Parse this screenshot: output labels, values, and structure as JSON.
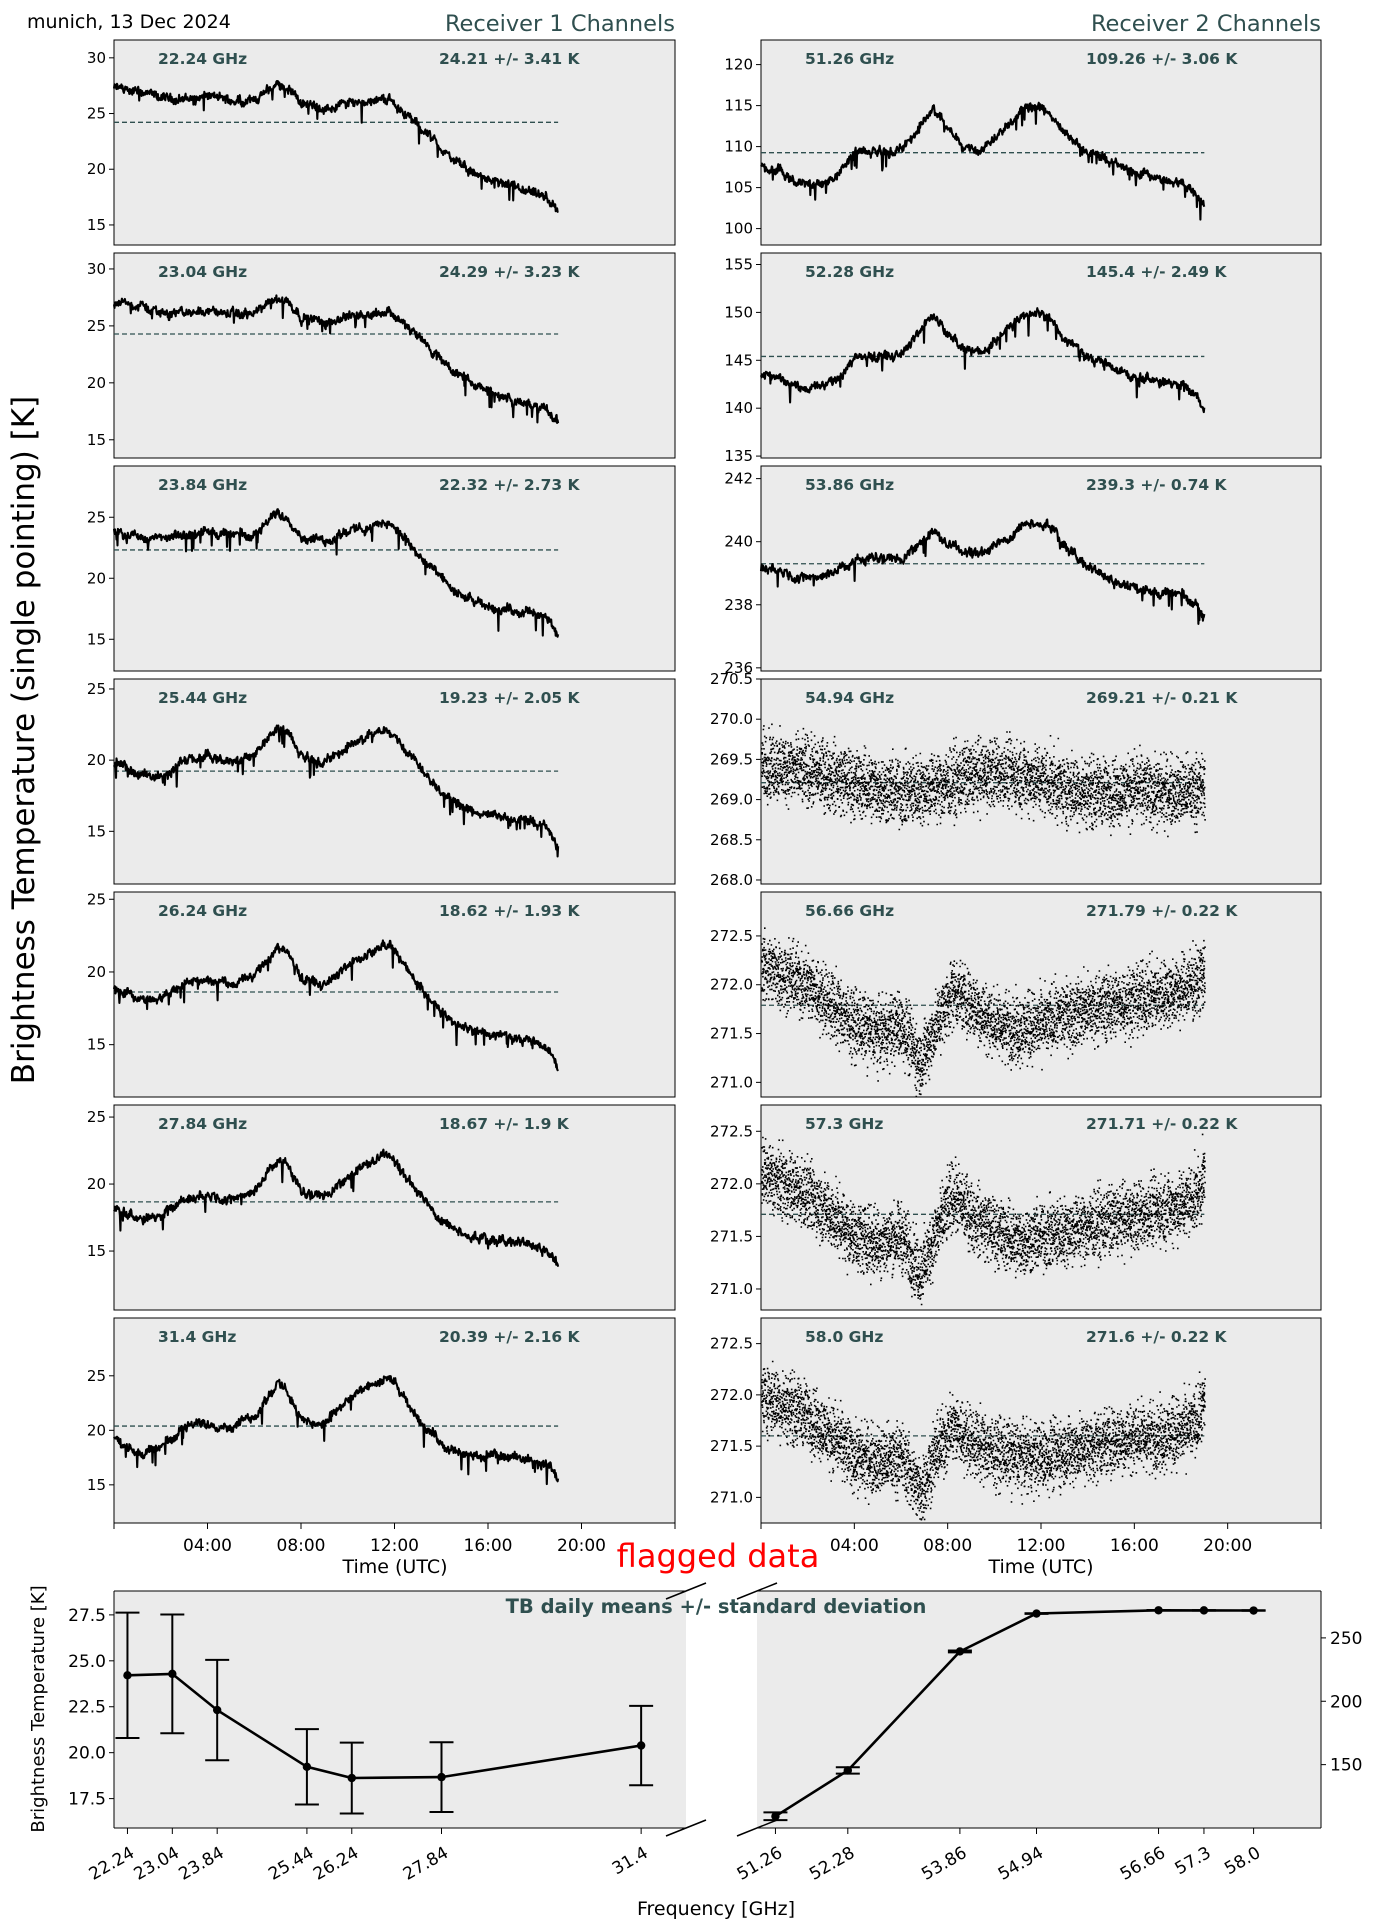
{
  "header": {
    "location_date": "munich, 13 Dec 2024",
    "rx1_title": "Receiver 1 Channels",
    "rx2_title": "Receiver 2 Channels",
    "ylabel": "Brightness Temperature (single pointing) [K]",
    "flag_text": "flagged data"
  },
  "colors": {
    "panel_bg": "#ebebeb",
    "line": "#000000",
    "mean_line": "#2f4f4f",
    "label": "#2f4f4f",
    "flag": "#ff0000"
  },
  "time_axis": {
    "xlabel": "Time (UTC)",
    "range_h": [
      0,
      24
    ],
    "ticks": [
      {
        "h": 4,
        "label": "04:00"
      },
      {
        "h": 8,
        "label": "08:00"
      },
      {
        "h": 12,
        "label": "12:00"
      },
      {
        "h": 16,
        "label": "16:00"
      },
      {
        "h": 20,
        "label": "20:00"
      }
    ],
    "data_end_h": 19
  },
  "chart_data": [
    {
      "type": "line",
      "receiver": 1,
      "channel_label": "22.24 GHz",
      "stat_label": "24.21 +/- 3.41 K",
      "mean": 24.21,
      "ylim": [
        13.2,
        31.6
      ],
      "yticks": [
        15,
        20,
        25,
        30
      ],
      "x": [
        0,
        1,
        2,
        3,
        4,
        5,
        6,
        7,
        7.5,
        8,
        9,
        10,
        11,
        11.8,
        12.5,
        13.5,
        14.5,
        15.5,
        16.5,
        17.5,
        18.5,
        19
      ],
      "y": [
        27.3,
        27.0,
        26.4,
        26.3,
        26.6,
        26.2,
        26.2,
        27.6,
        27.3,
        26.0,
        25.3,
        26.0,
        26.2,
        26.3,
        24.9,
        23.0,
        20.8,
        19.5,
        18.7,
        18.0,
        17.4,
        16.2
      ]
    },
    {
      "type": "line",
      "receiver": 1,
      "channel_label": "23.04 GHz",
      "stat_label": "24.29 +/- 3.23 K",
      "mean": 24.29,
      "ylim": [
        13.4,
        31.4
      ],
      "yticks": [
        15,
        20,
        25,
        30
      ],
      "x": [
        0,
        1,
        2,
        3,
        4,
        5,
        6,
        7,
        7.5,
        8,
        9,
        10,
        11,
        11.8,
        12.5,
        13.5,
        14.5,
        15.5,
        16.5,
        17.5,
        18.5,
        19
      ],
      "y": [
        27.1,
        26.8,
        26.2,
        26.1,
        26.4,
        26.0,
        26.1,
        27.4,
        27.1,
        25.8,
        25.3,
        25.9,
        26.1,
        26.3,
        25.0,
        23.0,
        21.0,
        19.7,
        18.9,
        18.2,
        17.6,
        16.5
      ]
    },
    {
      "type": "line",
      "receiver": 1,
      "channel_label": "23.84 GHz",
      "stat_label": "22.32 +/- 2.73 K",
      "mean": 22.32,
      "ylim": [
        12.4,
        29.2
      ],
      "yticks": [
        15,
        20,
        25
      ],
      "x": [
        0,
        1,
        2,
        3,
        4,
        5,
        6,
        7,
        7.5,
        8,
        9,
        10,
        11,
        11.8,
        12.5,
        13.5,
        14.5,
        15.5,
        16.5,
        17.5,
        18.5,
        19
      ],
      "y": [
        24.0,
        23.4,
        23.2,
        23.5,
        23.9,
        23.5,
        23.6,
        25.4,
        24.9,
        23.4,
        23.0,
        23.9,
        24.2,
        24.6,
        23.0,
        21.0,
        19.0,
        17.9,
        17.5,
        17.3,
        16.8,
        15.4
      ]
    },
    {
      "type": "line",
      "receiver": 1,
      "channel_label": "25.44 GHz",
      "stat_label": "19.23 +/- 2.05 K",
      "mean": 19.23,
      "ylim": [
        11.3,
        25.7
      ],
      "yticks": [
        15,
        20,
        25
      ],
      "x": [
        0,
        1,
        2,
        3,
        4,
        5,
        6,
        7,
        7.5,
        8,
        9,
        10,
        11,
        11.8,
        12.5,
        13.5,
        14.5,
        15.5,
        16.5,
        17.5,
        18.5,
        19
      ],
      "y": [
        19.8,
        19.0,
        18.9,
        19.9,
        20.2,
        19.8,
        20.4,
        22.3,
        21.8,
        20.3,
        19.8,
        21.0,
        21.7,
        22.2,
        20.8,
        18.8,
        17.0,
        16.3,
        16.0,
        15.8,
        15.3,
        13.8
      ]
    },
    {
      "type": "line",
      "receiver": 1,
      "channel_label": "26.24 GHz",
      "stat_label": "18.62 +/- 1.93 K",
      "mean": 18.62,
      "ylim": [
        11.4,
        25.5
      ],
      "yticks": [
        15,
        20,
        25
      ],
      "x": [
        0,
        1,
        2,
        3,
        4,
        5,
        6,
        7,
        7.5,
        8,
        9,
        10,
        11,
        11.8,
        12.5,
        13.5,
        14.5,
        15.5,
        16.5,
        17.5,
        18.5,
        19
      ],
      "y": [
        18.9,
        18.1,
        18.2,
        19.3,
        19.5,
        19.2,
        19.7,
        21.8,
        21.2,
        19.6,
        19.1,
        20.5,
        21.3,
        21.9,
        20.2,
        18.2,
        16.5,
        15.9,
        15.6,
        15.4,
        14.9,
        13.5
      ]
    },
    {
      "type": "line",
      "receiver": 1,
      "channel_label": "27.84 GHz",
      "stat_label": "18.67 +/- 1.9 K",
      "mean": 18.67,
      "ylim": [
        10.6,
        25.9
      ],
      "yticks": [
        15,
        20,
        25
      ],
      "x": [
        0,
        1,
        2,
        3,
        4,
        5,
        6,
        7,
        7.5,
        8,
        9,
        10,
        11,
        11.8,
        12.5,
        13.5,
        14.5,
        15.5,
        16.5,
        17.5,
        18.5,
        19
      ],
      "y": [
        18.3,
        17.3,
        17.5,
        18.9,
        19.2,
        18.9,
        19.5,
        21.9,
        21.3,
        19.4,
        19.0,
        20.6,
        21.6,
        22.3,
        20.4,
        18.3,
        16.6,
        16.0,
        15.8,
        15.6,
        15.1,
        14.0
      ]
    },
    {
      "type": "line",
      "receiver": 1,
      "channel_label": "31.4 GHz",
      "stat_label": "20.39 +/- 2.16 K",
      "mean": 20.39,
      "ylim": [
        11.5,
        30.3
      ],
      "yticks": [
        15,
        20,
        25
      ],
      "x": [
        0,
        1,
        2,
        3,
        4,
        5,
        6,
        7,
        7.5,
        8,
        9,
        10,
        11,
        11.8,
        12.5,
        13.5,
        14.5,
        15.5,
        16.5,
        17.5,
        18.5,
        19
      ],
      "y": [
        19.1,
        17.9,
        18.3,
        20.4,
        20.7,
        20.3,
        21.3,
        24.3,
        23.4,
        20.9,
        20.5,
        22.9,
        24.0,
        24.9,
        22.5,
        19.9,
        18.0,
        17.6,
        17.6,
        17.5,
        17.0,
        15.5
      ]
    },
    {
      "type": "line",
      "receiver": 2,
      "channel_label": "51.26 GHz",
      "stat_label": "109.26 +/- 3.06 K",
      "mean": 109.26,
      "ylim": [
        98.0,
        123.0
      ],
      "yticks": [
        100,
        105,
        110,
        115,
        120
      ],
      "x": [
        0,
        0.8,
        1.5,
        2.5,
        3.2,
        4,
        5,
        6,
        6.8,
        7.4,
        8,
        8.7,
        9.5,
        10.5,
        11.2,
        11.9,
        12.4,
        13,
        14,
        15,
        16,
        17,
        18,
        18.6,
        19
      ],
      "y": [
        107.3,
        106.9,
        105.5,
        105.4,
        106.2,
        109.3,
        109.4,
        109.5,
        112.5,
        114.6,
        112.0,
        110.2,
        109.7,
        112.7,
        114.4,
        114.9,
        114.0,
        111.5,
        109.4,
        108.1,
        106.8,
        106.1,
        105.6,
        104.6,
        102.8
      ]
    },
    {
      "type": "line",
      "receiver": 2,
      "channel_label": "52.28 GHz",
      "stat_label": "145.4 +/- 2.49 K",
      "mean": 145.4,
      "ylim": [
        134.8,
        156.2
      ],
      "yticks": [
        135,
        140,
        145,
        150,
        155
      ],
      "x": [
        0,
        0.8,
        1.5,
        2.5,
        3.2,
        4,
        5,
        6,
        6.8,
        7.4,
        8,
        8.7,
        9.5,
        10.5,
        11.2,
        11.9,
        12.4,
        13,
        14,
        15,
        16,
        17,
        18,
        18.6,
        19
      ],
      "y": [
        143.6,
        143.3,
        142.2,
        142.2,
        142.9,
        145.3,
        145.4,
        145.6,
        148.1,
        149.8,
        147.6,
        146.1,
        145.7,
        148.3,
        149.6,
        150.0,
        149.3,
        147.2,
        145.4,
        144.4,
        143.3,
        142.7,
        142.3,
        141.5,
        139.9
      ]
    },
    {
      "type": "line",
      "receiver": 2,
      "channel_label": "53.86 GHz",
      "stat_label": "239.3 +/- 0.74 K",
      "mean": 239.3,
      "ylim": [
        235.9,
        242.4
      ],
      "yticks": [
        236,
        238,
        240,
        242
      ],
      "x": [
        0,
        0.8,
        1.5,
        2.5,
        3.2,
        4,
        5,
        6,
        6.8,
        7.4,
        8,
        8.7,
        9.5,
        10.5,
        11.2,
        11.9,
        12.4,
        13,
        14,
        15,
        16,
        17,
        18,
        18.6,
        19
      ],
      "y": [
        239.2,
        239.1,
        238.9,
        238.9,
        239.1,
        239.4,
        239.5,
        239.4,
        240.0,
        240.3,
        239.9,
        239.7,
        239.6,
        240.1,
        240.5,
        240.6,
        240.5,
        239.9,
        239.2,
        238.8,
        238.5,
        238.4,
        238.3,
        238.1,
        237.6
      ]
    },
    {
      "type": "scatter",
      "receiver": 2,
      "channel_label": "54.94 GHz",
      "stat_label": "269.21 +/- 0.21 K",
      "mean": 269.21,
      "ylim": [
        267.95,
        270.5
      ],
      "yticks": [
        268.0,
        268.5,
        269.0,
        269.5,
        270.0,
        270.5
      ],
      "x": [
        0,
        1,
        2,
        3,
        4,
        5,
        6,
        7,
        8,
        9,
        10,
        11,
        12,
        13,
        14,
        15,
        16,
        17,
        18,
        19
      ],
      "y": [
        269.45,
        269.4,
        269.35,
        269.3,
        269.2,
        269.15,
        269.1,
        269.15,
        269.2,
        269.3,
        269.35,
        269.3,
        269.25,
        269.15,
        269.1,
        269.1,
        269.15,
        269.1,
        269.1,
        269.15
      ]
    },
    {
      "type": "scatter",
      "receiver": 2,
      "channel_label": "56.66 GHz",
      "stat_label": "271.79 +/- 0.22 K",
      "mean": 271.79,
      "ylim": [
        270.85,
        272.95
      ],
      "yticks": [
        271.0,
        271.5,
        272.0,
        272.5
      ],
      "x": [
        0,
        1,
        2,
        3,
        4,
        5,
        6,
        6.8,
        7.5,
        8.2,
        9,
        10,
        11,
        12,
        13,
        14,
        15,
        16,
        17,
        18,
        18.7,
        19
      ],
      "y": [
        272.2,
        272.1,
        272.0,
        271.8,
        271.6,
        271.5,
        271.6,
        271.2,
        271.6,
        271.95,
        271.8,
        271.6,
        271.55,
        271.6,
        271.7,
        271.75,
        271.8,
        271.85,
        271.9,
        271.95,
        272.05,
        272.15
      ]
    },
    {
      "type": "scatter",
      "receiver": 2,
      "channel_label": "57.3 GHz",
      "stat_label": "271.71 +/- 0.22 K",
      "mean": 271.71,
      "ylim": [
        270.8,
        272.75
      ],
      "yticks": [
        271.0,
        271.5,
        272.0,
        272.5
      ],
      "x": [
        0,
        1,
        2,
        3,
        4,
        5,
        6,
        6.8,
        7.5,
        8.2,
        9,
        10,
        11,
        12,
        13,
        14,
        15,
        16,
        17,
        18,
        18.7,
        19
      ],
      "y": [
        272.1,
        272.0,
        271.9,
        271.7,
        271.5,
        271.45,
        271.5,
        271.15,
        271.55,
        271.9,
        271.7,
        271.55,
        271.45,
        271.5,
        271.55,
        271.6,
        271.65,
        271.7,
        271.75,
        271.8,
        271.9,
        272.1
      ]
    },
    {
      "type": "scatter",
      "receiver": 2,
      "channel_label": "58.0 GHz",
      "stat_label": "271.6 +/- 0.22 K",
      "mean": 271.6,
      "ylim": [
        270.75,
        272.75
      ],
      "yticks": [
        271.0,
        271.5,
        272.0,
        272.5
      ],
      "x": [
        0,
        1,
        2,
        3,
        4,
        5,
        6,
        6.8,
        7.5,
        8.2,
        9,
        10,
        11,
        12,
        13,
        14,
        15,
        16,
        17,
        18,
        18.7,
        19
      ],
      "y": [
        272.0,
        271.9,
        271.8,
        271.6,
        271.4,
        271.35,
        271.4,
        271.05,
        271.45,
        271.7,
        271.55,
        271.45,
        271.4,
        271.4,
        271.45,
        271.5,
        271.55,
        271.6,
        271.6,
        271.65,
        271.75,
        271.95
      ]
    },
    {
      "type": "line",
      "role": "daily-means",
      "title": "TB daily means +/- standard deviation",
      "xlabel": "Frequency [GHz]",
      "ylabel": "Brightness Temperature [K]",
      "left": {
        "x": [
          22.24,
          23.04,
          23.84,
          25.44,
          26.24,
          27.84,
          31.4
        ],
        "tick_labels": [
          "22.24",
          "23.04",
          "23.84",
          "25.44",
          "26.24",
          "27.84",
          "31.4"
        ],
        "y": [
          24.21,
          24.29,
          22.32,
          19.23,
          18.62,
          18.67,
          20.39
        ],
        "err": [
          3.41,
          3.23,
          2.73,
          2.05,
          1.93,
          1.9,
          2.16
        ],
        "xlim": [
          22.0,
          32.2
        ],
        "ylim": [
          15.9,
          28.8
        ],
        "yticks": [
          17.5,
          20.0,
          22.5,
          25.0,
          27.5
        ]
      },
      "right": {
        "x": [
          51.26,
          52.28,
          53.86,
          54.94,
          56.66,
          57.3,
          58.0
        ],
        "tick_labels": [
          "51.26",
          "52.28",
          "53.86",
          "54.94",
          "56.66",
          "57.3",
          "58.0"
        ],
        "y": [
          109.26,
          145.4,
          239.3,
          269.21,
          271.79,
          271.71,
          271.6
        ],
        "err": [
          3.06,
          2.49,
          0.74,
          0.21,
          0.22,
          0.22,
          0.22
        ],
        "xlim": [
          51.0,
          58.95
        ],
        "ylim": [
          100.0,
          287.0
        ],
        "yticks": [
          150,
          200,
          250
        ]
      }
    }
  ]
}
